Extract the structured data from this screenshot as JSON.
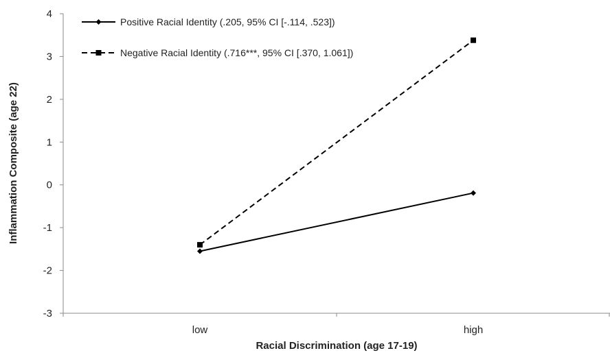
{
  "chart_data": {
    "type": "line",
    "title": "",
    "xlabel": "Racial Discrimination (age 17-19)",
    "ylabel": "Inflammation Composite (age 22)",
    "categories": [
      "low",
      "high"
    ],
    "ylim": [
      -3,
      4
    ],
    "yticks": [
      "4",
      "3",
      "2",
      "1",
      "0",
      "-1",
      "-2",
      "-3"
    ],
    "grid": false,
    "legend_position": "top-left",
    "series": [
      {
        "name": "Positive Racial Identity (.205, 95% CI [-.114, .523])",
        "values": [
          -1.55,
          -0.19
        ],
        "line_style": "solid",
        "marker": "diamond",
        "color": "#000000"
      },
      {
        "name": "Negative Racial Identity (.716***, 95% CI [.370, 1.061])",
        "values": [
          -1.4,
          3.38
        ],
        "line_style": "dashed",
        "marker": "square",
        "color": "#000000"
      }
    ]
  }
}
